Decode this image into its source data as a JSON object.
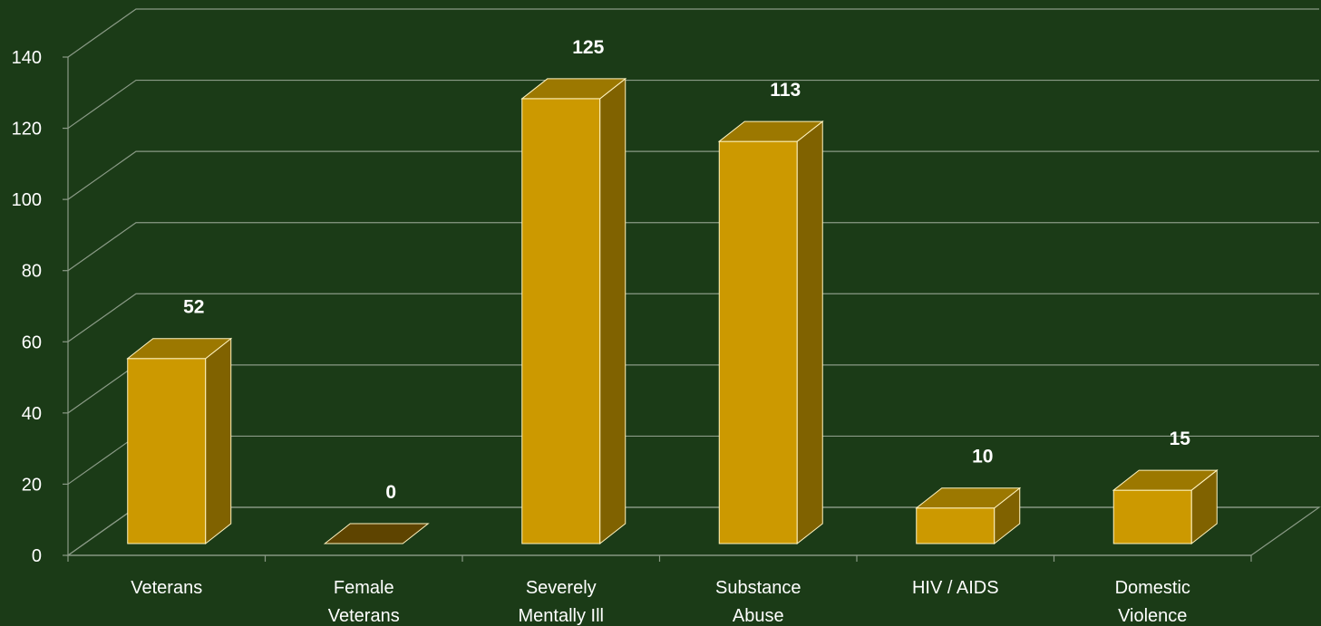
{
  "chart_data": {
    "type": "bar3d",
    "categories": [
      "Veterans",
      "Female\nVeterans",
      "Severely\nMentally Ill",
      "Substance\nAbuse",
      "HIV / AIDS",
      "Domestic\nViolence"
    ],
    "values": [
      52,
      0,
      125,
      113,
      10,
      15
    ],
    "color": "#cc9900",
    "ylim": [
      0,
      140
    ],
    "yticks": [
      0,
      20,
      40,
      60,
      80,
      100,
      120,
      140
    ],
    "grid": true
  }
}
